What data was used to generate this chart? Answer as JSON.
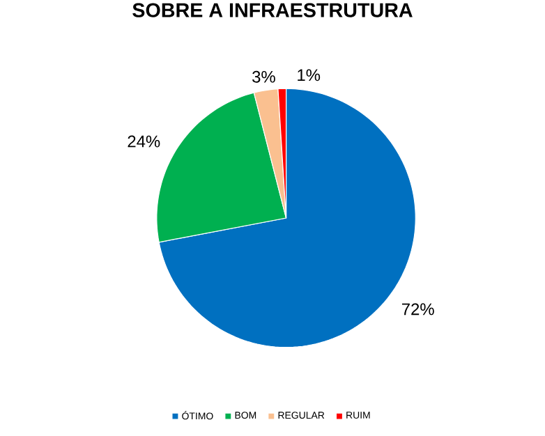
{
  "chart_data": {
    "type": "pie",
    "title": "SOBRE A INFRAESTRUTURA",
    "categories": [
      "ÓTIMO",
      "BOM",
      "REGULAR",
      "RUIM"
    ],
    "values": [
      72,
      24,
      3,
      1
    ],
    "colors": [
      "#0070c0",
      "#00b050",
      "#fac090",
      "#ff0000"
    ],
    "value_labels": [
      "72%",
      "24%",
      "3%",
      "1%"
    ],
    "legend": "bottom"
  }
}
